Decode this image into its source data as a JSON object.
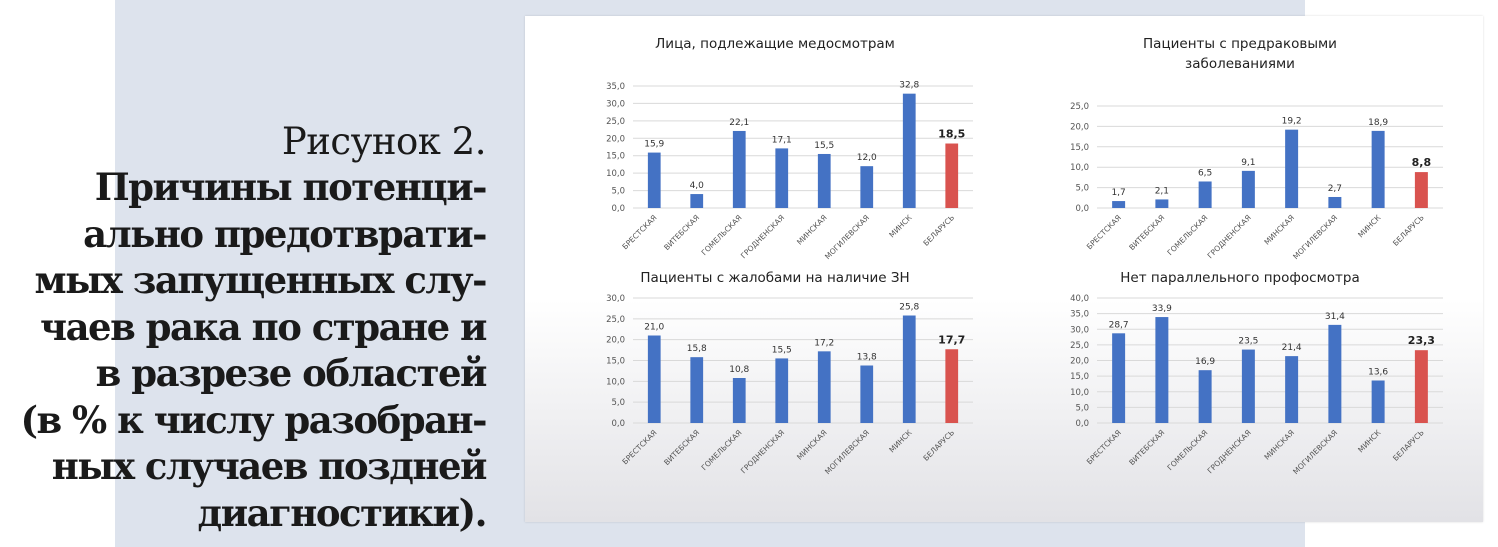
{
  "caption": {
    "label": "Рисунок 2.",
    "title_lines": [
      "Причины потенци-",
      "ально предотврати-",
      "мых запущенных слу-",
      "чаев рака по стране и",
      "в разрезе областей",
      "(в % к числу разобран-",
      "ных случаев поздней",
      "диагностики)."
    ]
  },
  "colors": {
    "bar": "#4472c4",
    "highlight": "#d9534f",
    "grid": "#d9d9d9",
    "tick": "#555555",
    "background_panel": "#dde3ed"
  },
  "chart_data": [
    {
      "type": "bar",
      "title": "Лица, подлежащие медосмотрам",
      "categories": [
        "БРЕСТСКАЯ",
        "ВИТЕБСКАЯ",
        "ГОМЕЛЬСКАЯ",
        "ГРОДНЕНСКАЯ",
        "МИНСКАЯ",
        "МОГИЛЕВСКАЯ",
        "МИНСК",
        "БЕЛАРУСЬ"
      ],
      "values": [
        15.9,
        4.0,
        22.1,
        17.1,
        15.5,
        12.0,
        32.8,
        18.5
      ],
      "value_labels": [
        "15,9",
        "4,0",
        "22,1",
        "17,1",
        "15,5",
        "12,0",
        "32,8",
        "18,5"
      ],
      "highlight_index": 7,
      "ylim": [
        0,
        35
      ],
      "y_ticks": [
        "0,0",
        "5,0",
        "10,0",
        "15,0",
        "20,0",
        "25,0",
        "30,0",
        "35,0"
      ],
      "grid": true,
      "xlabel": "",
      "ylabel": ""
    },
    {
      "type": "bar",
      "title": "Пациенты с предраковыми заболеваниями",
      "title_lines": [
        "Пациенты с предраковыми",
        "заболеваниями"
      ],
      "categories": [
        "БРЕСТСКАЯ",
        "ВИТЕБСКАЯ",
        "ГОМЕЛЬСКАЯ",
        "ГРОДНЕНСКАЯ",
        "МИНСКАЯ",
        "МОГИЛЕВСКАЯ",
        "МИНСК",
        "БЕЛАРУСЬ"
      ],
      "values": [
        1.7,
        2.1,
        6.5,
        9.1,
        19.2,
        2.7,
        18.9,
        8.8
      ],
      "value_labels": [
        "1,7",
        "2,1",
        "6,5",
        "9,1",
        "19,2",
        "2,7",
        "18,9",
        "8,8"
      ],
      "highlight_index": 7,
      "ylim": [
        0,
        25
      ],
      "y_ticks": [
        "0,0",
        "5,0",
        "10,0",
        "15,0",
        "20,0",
        "25,0"
      ],
      "grid": true,
      "xlabel": "",
      "ylabel": ""
    },
    {
      "type": "bar",
      "title": "Пациенты с жалобами на наличие ЗН",
      "categories": [
        "БРЕСТСКАЯ",
        "ВИТЕБСКАЯ",
        "ГОМЕЛЬСКАЯ",
        "ГРОДНЕНСКАЯ",
        "МИНСКАЯ",
        "МОГИЛЕВСКАЯ",
        "МИНСК",
        "БЕЛАРУСЬ"
      ],
      "values": [
        21.0,
        15.8,
        10.8,
        15.5,
        17.2,
        13.8,
        25.8,
        17.7
      ],
      "value_labels": [
        "21,0",
        "15,8",
        "10,8",
        "15,5",
        "17,2",
        "13,8",
        "25,8",
        "17,7"
      ],
      "highlight_index": 7,
      "ylim": [
        0,
        30
      ],
      "y_ticks": [
        "0,0",
        "5,0",
        "10,0",
        "15,0",
        "20,0",
        "25,0",
        "30,0"
      ],
      "grid": true,
      "xlabel": "",
      "ylabel": ""
    },
    {
      "type": "bar",
      "title": "Нет параллельного профосмотра",
      "categories": [
        "БРЕСТСКАЯ",
        "ВИТЕБСКАЯ",
        "ГОМЕЛЬСКАЯ",
        "ГРОДНЕНСКАЯ",
        "МИНСКАЯ",
        "МОГИЛЕВСКАЯ",
        "МИНСК",
        "БЕЛАРУСЬ"
      ],
      "values": [
        28.7,
        33.9,
        16.9,
        23.5,
        21.4,
        31.4,
        13.6,
        23.3
      ],
      "value_labels": [
        "28,7",
        "33,9",
        "16,9",
        "23,5",
        "21,4",
        "31,4",
        "13,6",
        "23,3"
      ],
      "highlight_index": 7,
      "ylim": [
        0,
        40
      ],
      "y_ticks": [
        "0,0",
        "5,0",
        "10,0",
        "15,0",
        "20,0",
        "25,0",
        "30,0",
        "35,0",
        "40,0"
      ],
      "grid": true,
      "xlabel": "",
      "ylabel": ""
    }
  ]
}
